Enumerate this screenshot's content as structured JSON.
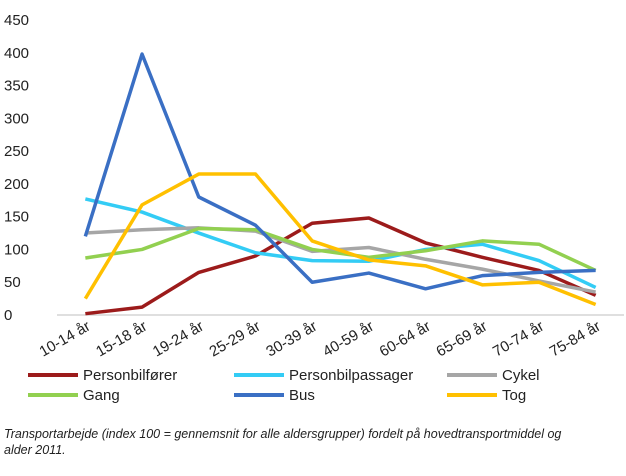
{
  "chart_data": {
    "type": "line",
    "categories": [
      "10-14 år",
      "15-18 år",
      "19-24 år",
      "25-29 år",
      "30-39 år",
      "40-59 år",
      "60-64 år",
      "65-69 år",
      "70-74 år",
      "75-84 år"
    ],
    "series": [
      {
        "name": "Personbilfører",
        "color": "#9c1b1b",
        "values": [
          2,
          12,
          65,
          90,
          140,
          148,
          110,
          88,
          68,
          30
        ]
      },
      {
        "name": "Personbilpassager",
        "color": "#33ccf5",
        "values": [
          177,
          157,
          125,
          95,
          83,
          82,
          100,
          108,
          83,
          42
        ]
      },
      {
        "name": "Cykel",
        "color": "#a6a6a6",
        "values": [
          125,
          130,
          133,
          128,
          97,
          103,
          85,
          70,
          52,
          35
        ]
      },
      {
        "name": "Gang",
        "color": "#92d050",
        "values": [
          87,
          100,
          132,
          130,
          100,
          88,
          98,
          113,
          108,
          68
        ]
      },
      {
        "name": "Bus",
        "color": "#3a6fc4",
        "values": [
          120,
          398,
          180,
          137,
          50,
          64,
          40,
          60,
          65,
          68
        ]
      },
      {
        "name": "Tog",
        "color": "#ffc000",
        "values": [
          25,
          168,
          215,
          215,
          113,
          84,
          75,
          46,
          50,
          16
        ]
      }
    ],
    "ylim": [
      0,
      450
    ],
    "yticks": [
      0,
      50,
      100,
      150,
      200,
      250,
      300,
      350,
      400,
      450
    ],
    "caption": "Transportarbejde (index 100 = gennemsnit for alle aldersgrupper) fordelt på hovedtransportmiddel og alder 2011."
  }
}
